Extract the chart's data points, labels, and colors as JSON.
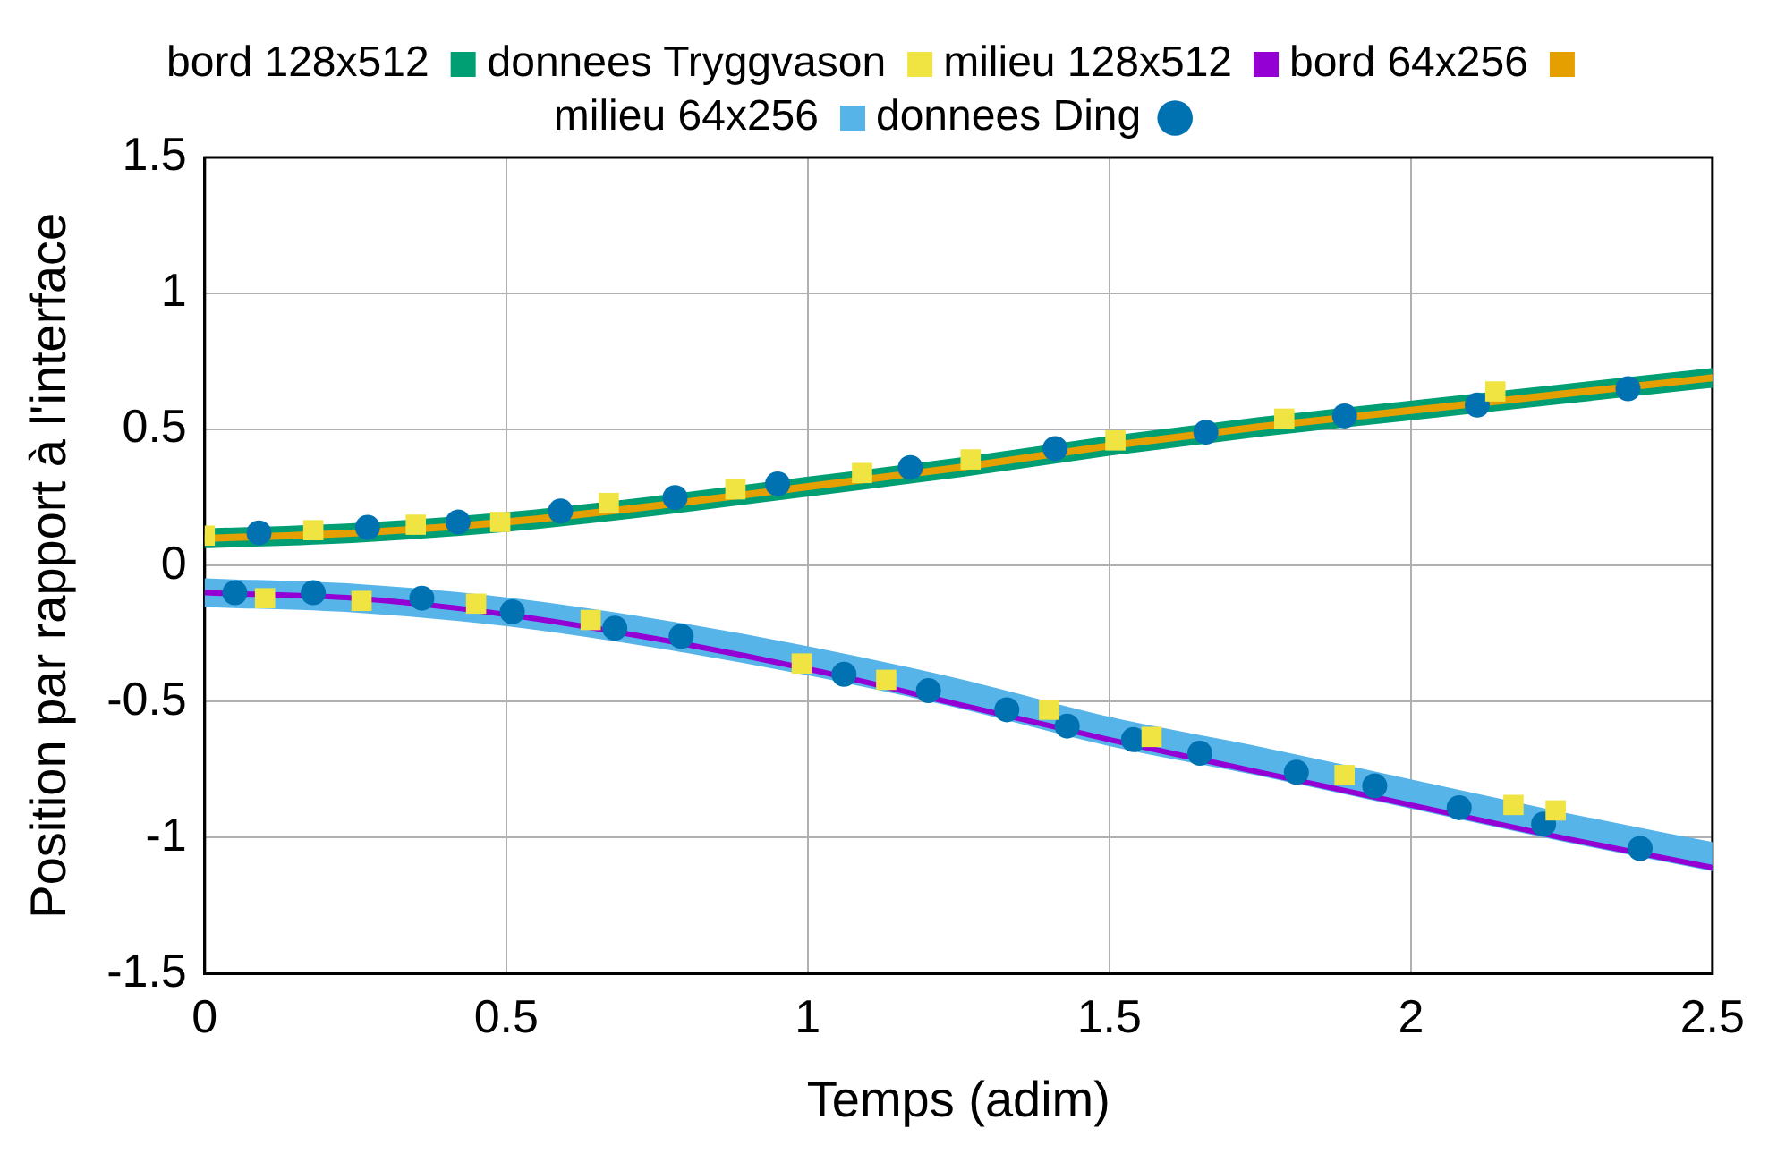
{
  "chart_data": {
    "type": "line",
    "xlabel": "Temps (adim)",
    "ylabel": "Position par rapport à l'interface",
    "xlim": [
      0,
      2.5
    ],
    "xticks": [
      0,
      0.5,
      1,
      1.5,
      2,
      2.5
    ],
    "ylim": [
      -1.5,
      1.5
    ],
    "yticks": [
      -1.5,
      -1,
      -0.5,
      0,
      0.5,
      1,
      1.5
    ],
    "grid": true,
    "legend": "top",
    "line_style": "solid",
    "series": [
      {
        "name": "milieu 128x512",
        "color": "#9400d3",
        "type": "line",
        "marker": "none",
        "x": [
          0,
          0.25,
          0.5,
          0.75,
          1,
          1.25,
          1.5,
          1.75,
          2,
          2.25,
          2.5
        ],
        "values": [
          -0.1,
          -0.12,
          -0.18,
          -0.27,
          -0.38,
          -0.51,
          -0.64,
          -0.76,
          -0.88,
          -1.0,
          -1.11
        ]
      },
      {
        "name": "bord 128x512",
        "color": "#009e73",
        "type": "line",
        "marker": "none",
        "x": [
          0,
          0.25,
          0.5,
          0.75,
          1,
          1.25,
          1.5,
          1.75,
          2,
          2.25,
          2.5
        ],
        "values": [
          0.1,
          0.12,
          0.16,
          0.22,
          0.29,
          0.36,
          0.44,
          0.51,
          0.57,
          0.63,
          0.69
        ]
      },
      {
        "name": "milieu 64x256",
        "color": "#56b4e9",
        "type": "line",
        "marker": "none",
        "x": [
          0,
          0.25,
          0.5,
          0.75,
          1,
          1.25,
          1.5,
          1.75,
          2,
          2.25,
          2.5
        ],
        "values": [
          -0.1,
          -0.12,
          -0.17,
          -0.25,
          -0.35,
          -0.47,
          -0.61,
          -0.72,
          -0.84,
          -0.96,
          -1.07
        ]
      },
      {
        "name": "bord 64x256",
        "color": "#e69f00",
        "type": "line",
        "marker": "none",
        "x": [
          0,
          0.25,
          0.5,
          0.75,
          1,
          1.25,
          1.5,
          1.75,
          2,
          2.25,
          2.5
        ],
        "values": [
          0.1,
          0.12,
          0.16,
          0.22,
          0.29,
          0.36,
          0.44,
          0.51,
          0.57,
          0.63,
          0.69
        ]
      },
      {
        "name": "donnees Tryggvason",
        "color": "#f0e442",
        "type": "scatter",
        "marker": "square",
        "x": [
          0,
          0.18,
          0.35,
          0.49,
          0.67,
          0.88,
          1.09,
          1.27,
          1.51,
          1.79,
          2.14,
          0.1,
          0.26,
          0.45,
          0.64,
          0.99,
          1.13,
          1.4,
          1.57,
          1.89,
          2.17,
          2.24
        ],
        "values": [
          0.11,
          0.13,
          0.15,
          0.16,
          0.23,
          0.28,
          0.34,
          0.39,
          0.46,
          0.54,
          0.64,
          -0.12,
          -0.13,
          -0.14,
          -0.2,
          -0.36,
          -0.42,
          -0.53,
          -0.63,
          -0.77,
          -0.88,
          -0.9
        ]
      },
      {
        "name": "donnees Ding",
        "color": "#0072b2",
        "type": "scatter",
        "marker": "circle",
        "x": [
          0.09,
          0.27,
          0.42,
          0.59,
          0.78,
          0.95,
          1.17,
          1.41,
          1.66,
          1.89,
          2.11,
          2.36,
          0.05,
          0.18,
          0.36,
          0.51,
          0.68,
          0.79,
          1.06,
          1.2,
          1.33,
          1.43,
          1.54,
          1.65,
          1.81,
          1.94,
          2.08,
          2.22,
          2.38
        ],
        "values": [
          0.12,
          0.14,
          0.16,
          0.2,
          0.25,
          0.3,
          0.36,
          0.43,
          0.49,
          0.55,
          0.59,
          0.65,
          -0.1,
          -0.1,
          -0.12,
          -0.17,
          -0.23,
          -0.26,
          -0.4,
          -0.46,
          -0.53,
          -0.59,
          -0.64,
          -0.69,
          -0.76,
          -0.81,
          -0.89,
          -0.95,
          -1.04
        ]
      }
    ]
  }
}
